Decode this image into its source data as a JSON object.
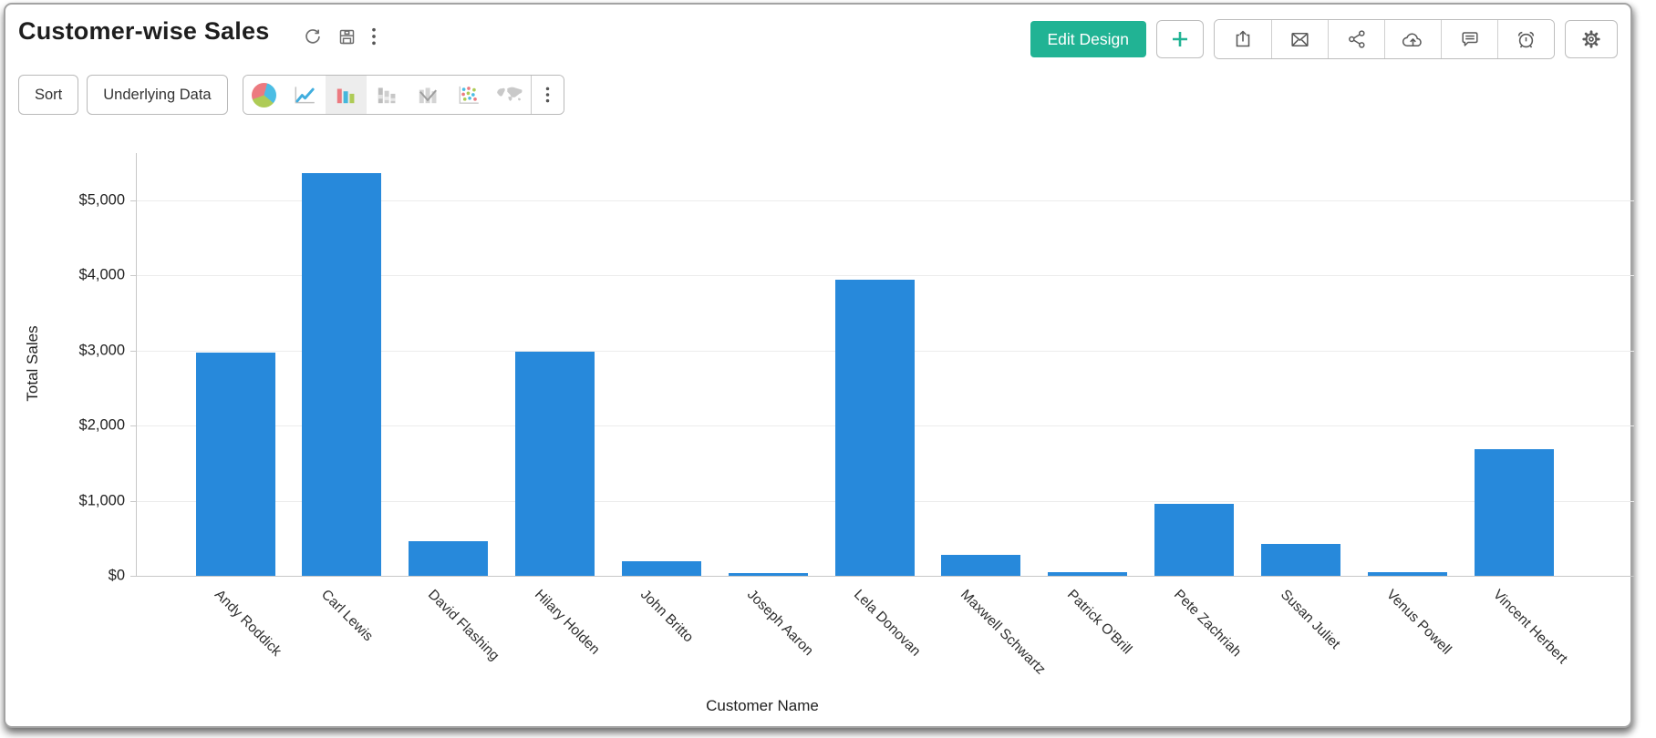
{
  "header": {
    "title": "Customer-wise Sales",
    "edit_design_label": "Edit Design",
    "left_action_icons": [
      "refresh-icon",
      "save-icon",
      "more-menu-icon"
    ],
    "right_action_icons": [
      "add-icon",
      "export-icon",
      "email-icon",
      "share-icon",
      "cloud-upload-icon",
      "comment-icon",
      "schedule-icon",
      "settings-icon"
    ]
  },
  "toolbar": {
    "sort_label": "Sort",
    "underlying_data_label": "Underlying Data",
    "chart_type_icons": [
      "pie",
      "line",
      "bar",
      "stacked-bar",
      "bar-line",
      "scatter",
      "map"
    ],
    "selected_chart_type": "bar"
  },
  "chart_data": {
    "type": "bar",
    "title": "Customer-wise Sales",
    "xlabel": "Customer Name",
    "ylabel": "Total Sales",
    "categories": [
      "Andy Roddick",
      "Carl Lewis",
      "David Flashing",
      "Hilary Holden",
      "John Britto",
      "Joseph Aaron",
      "Lela Donovan",
      "Maxwell Schwartz",
      "Patrick O'Brill",
      "Pete Zachriah",
      "Susan Juliet",
      "Venus Powell",
      "Vincent Herbert"
    ],
    "values": [
      2975,
      5360,
      460,
      2990,
      195,
      40,
      3940,
      280,
      50,
      960,
      420,
      50,
      1690
    ],
    "ylim": [
      0,
      5630
    ],
    "yticks": [
      {
        "value": 0,
        "label": "$0"
      },
      {
        "value": 1000,
        "label": "$1,000"
      },
      {
        "value": 2000,
        "label": "$2,000"
      },
      {
        "value": 3000,
        "label": "$3,000"
      },
      {
        "value": 4000,
        "label": "$4,000"
      },
      {
        "value": 5000,
        "label": "$5,000"
      }
    ],
    "grid": true,
    "legend": false,
    "bar_color": "#2789DB"
  },
  "colors": {
    "accent_teal": "#21B394",
    "bar_blue": "#2789DB",
    "icon_red": "#EC7A80",
    "icon_blue": "#4CBDE4",
    "icon_green": "#AECB56",
    "icon_gray": "#C7C7C7",
    "outline_gray": "#5A5A5A"
  }
}
